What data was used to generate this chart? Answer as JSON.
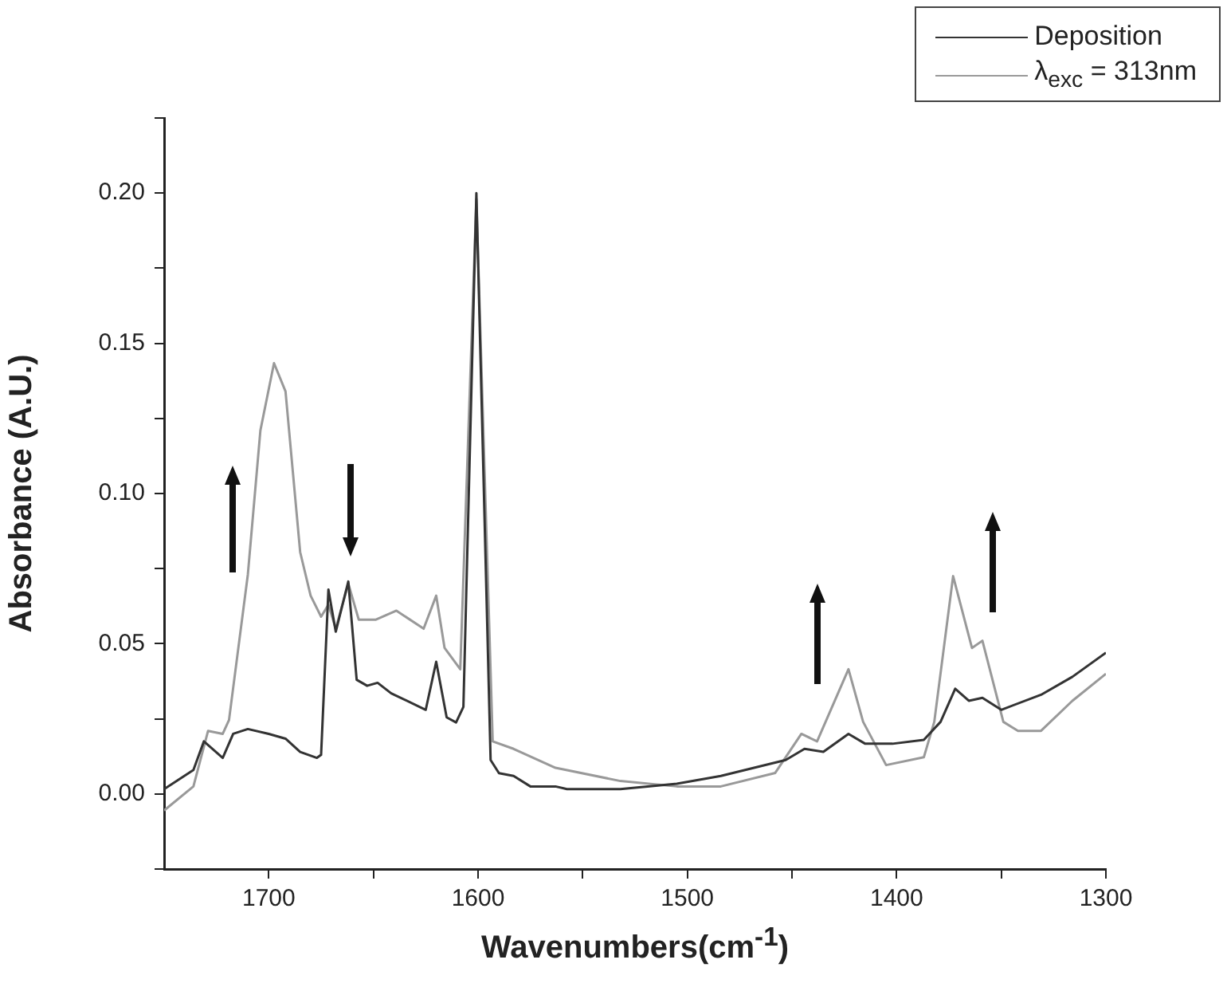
{
  "chart_data": {
    "type": "line",
    "xlabel": "Wavenumbers(cm$^{-1}$)",
    "ylabel": "Absorbance (A.U.)",
    "xlim": [
      1750,
      1300
    ],
    "xticks": [
      1700,
      {
        "value": 1650,
        "label": null
      },
      1600,
      {
        "value": 1550,
        "label": null
      },
      1500,
      {
        "value": 1450,
        "label": null
      },
      1400,
      {
        "value": 1350,
        "label": null
      },
      1300
    ],
    "ylim": [
      -0.025,
      0.225
    ],
    "yticks": [
      {
        "value": -0.025,
        "label": null
      },
      {
        "value": 0,
        "label": "0.00"
      },
      {
        "value": 0.025,
        "label": null
      },
      {
        "value": 0.05,
        "label": "0.05"
      },
      {
        "value": 0.075,
        "label": null
      },
      {
        "value": 0.1,
        "label": "0.10"
      },
      {
        "value": 0.125,
        "label": null
      },
      {
        "value": 0.15,
        "label": "0.15"
      },
      {
        "value": 0.175,
        "label": null
      },
      {
        "value": 0.2,
        "label": "0.20"
      },
      {
        "value": 0.225,
        "label": null
      }
    ],
    "grid": false,
    "legend": "top right",
    "marker": "none",
    "line_style": "solid",
    "series": [
      {
        "name": "Deposition",
        "color": "#333333",
        "x": [
          1750,
          1736,
          1731,
          1722,
          1717,
          1710,
          1700,
          1692,
          1685,
          1677,
          1675,
          1671.5,
          1668,
          1662,
          1658,
          1653,
          1648,
          1641.5,
          1625,
          1620,
          1615,
          1610.5,
          1607,
          1600.8,
          1594,
          1590,
          1583,
          1575,
          1563,
          1557.5,
          1532,
          1505,
          1484,
          1453,
          1444,
          1435,
          1423,
          1415,
          1402,
          1387,
          1379,
          1372,
          1365.5,
          1359,
          1350,
          1331,
          1316,
          1300
        ],
        "values": [
          0.0016,
          0.008,
          0.0175,
          0.012,
          0.02,
          0.0216,
          0.02,
          0.0184,
          0.014,
          0.012,
          0.013,
          0.068,
          0.054,
          0.0707,
          0.038,
          0.036,
          0.037,
          0.0335,
          0.028,
          0.044,
          0.0255,
          0.0238,
          0.029,
          0.2,
          0.0113,
          0.0069,
          0.006,
          0.0025,
          0.0025,
          0.0016,
          0.0016,
          0.0034,
          0.006,
          0.0113,
          0.015,
          0.014,
          0.02,
          0.0167,
          0.0167,
          0.018,
          0.024,
          0.035,
          0.031,
          0.032,
          0.028,
          0.033,
          0.039,
          0.047
        ]
      },
      {
        "name": "λ$_{exc}$ = 313nm",
        "color": "#999999",
        "x": [
          1750,
          1736,
          1729,
          1722,
          1719,
          1710,
          1704,
          1697.5,
          1692,
          1685,
          1680,
          1675,
          1671.5,
          1668,
          1662,
          1657,
          1649,
          1639,
          1626,
          1620,
          1616,
          1608.5,
          1600.8,
          1593,
          1583,
          1563,
          1532,
          1505,
          1484,
          1458,
          1445.5,
          1438,
          1423,
          1416,
          1405,
          1387,
          1382,
          1373,
          1364,
          1359,
          1349,
          1342,
          1331,
          1316,
          1300
        ],
        "values": [
          -0.0055,
          0.0025,
          0.021,
          0.02,
          0.0246,
          0.073,
          0.121,
          0.1434,
          0.134,
          0.0805,
          0.066,
          0.059,
          0.063,
          0.055,
          0.07,
          0.058,
          0.058,
          0.061,
          0.055,
          0.066,
          0.0486,
          0.0415,
          0.198,
          0.0175,
          0.015,
          0.0087,
          0.0043,
          0.0025,
          0.0025,
          0.007,
          0.02,
          0.0175,
          0.0415,
          0.024,
          0.0096,
          0.0122,
          0.024,
          0.0725,
          0.0486,
          0.051,
          0.024,
          0.021,
          0.021,
          0.031,
          0.04
        ]
      }
    ]
  }
}
